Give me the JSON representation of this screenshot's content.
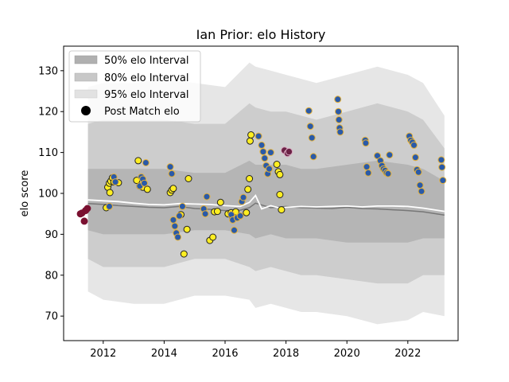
{
  "chart_data": {
    "type": "scatter",
    "title": "Ian Prior: elo History",
    "xlabel": "",
    "ylabel": "elo score",
    "xlim": [
      2010.7,
      2023.65
    ],
    "ylim": [
      64,
      136
    ],
    "xticks": [
      2012,
      2014,
      2016,
      2018,
      2020,
      2022
    ],
    "yticks": [
      70,
      80,
      90,
      100,
      110,
      120,
      130
    ],
    "grid": false,
    "legend_position": "top-left",
    "legend": [
      {
        "label": "50% elo Interval",
        "color": "#b0b0b0"
      },
      {
        "label": "80% elo Interval",
        "color": "#c8c8c8"
      },
      {
        "label": "95% elo Interval",
        "color": "#e2e2e2"
      },
      {
        "label": "Post Match elo",
        "color": "#000000"
      }
    ],
    "band_x": [
      2011.5,
      2012,
      2013,
      2014,
      2015,
      2016,
      2016.8,
      2017,
      2017.5,
      2018,
      2018.5,
      2019,
      2020,
      2021,
      2022,
      2022.5,
      2023.2
    ],
    "band95": {
      "upper": [
        126,
        127,
        127,
        128,
        127,
        126,
        132,
        131,
        130,
        129,
        128,
        127,
        129,
        131,
        129,
        127,
        119
      ],
      "lower": [
        76,
        74,
        73,
        73,
        75,
        75,
        74,
        72,
        73,
        72,
        71,
        71,
        70,
        68,
        69,
        71,
        70
      ]
    },
    "band80": {
      "upper": [
        117,
        118,
        118,
        118,
        117,
        117,
        122,
        121,
        120,
        120,
        119,
        118,
        120,
        122,
        120,
        118,
        111
      ],
      "lower": [
        84,
        82,
        82,
        82,
        84,
        84,
        82,
        81,
        82,
        81,
        80,
        80,
        79,
        78,
        78,
        80,
        80
      ]
    },
    "band50": {
      "upper": [
        106,
        106,
        106,
        106,
        105,
        105,
        108,
        107,
        107,
        107,
        106,
        106,
        107,
        108,
        107,
        106,
        103
      ],
      "lower": [
        91,
        90,
        90,
        90,
        91,
        91,
        90,
        89,
        90,
        89,
        89,
        89,
        88,
        88,
        88,
        89,
        89
      ]
    },
    "median_line": {
      "x": [
        2011.5,
        2012,
        2012.5,
        2013,
        2013.5,
        2014,
        2014.5,
        2015,
        2015.5,
        2016,
        2016.5,
        2016.8,
        2017,
        2017.5,
        2018,
        2018.5,
        2019,
        2019.5,
        2020,
        2020.5,
        2021,
        2021.5,
        2022,
        2022.5,
        2023.2
      ],
      "y": [
        97.5,
        97.3,
        97.0,
        96.8,
        96.6,
        96.5,
        96.8,
        96.3,
        96.1,
        95.8,
        95.9,
        96.5,
        97.6,
        96.5,
        96.8,
        96.5,
        96.4,
        96.3,
        96.6,
        96.3,
        96.2,
        96.0,
        95.8,
        95.5,
        94.7
      ]
    },
    "mean_line": {
      "x": [
        2011.5,
        2012,
        2012.5,
        2013,
        2013.5,
        2014,
        2014.5,
        2015,
        2015.5,
        2016,
        2016.5,
        2016.8,
        2017,
        2017.2,
        2017.5,
        2017.8,
        2018,
        2018.5,
        2019,
        2019.5,
        2020,
        2020.5,
        2021,
        2021.5,
        2022,
        2022.5,
        2023.2
      ],
      "y": [
        98.4,
        98.2,
        98.0,
        97.6,
        97.3,
        97.2,
        97.5,
        97.4,
        97.3,
        97.0,
        96.8,
        97.8,
        99.5,
        96.2,
        97.0,
        96.4,
        96.6,
        96.8,
        96.7,
        96.8,
        96.9,
        96.7,
        96.9,
        96.9,
        96.8,
        96.4,
        95.6
      ]
    },
    "series": [
      {
        "name": "Post Match elo",
        "style": "early",
        "x": [
          2011.25,
          2011.3,
          2011.38,
          2011.42,
          2011.48
        ],
        "y": [
          95,
          95.2,
          93.2,
          95.8,
          96.3
        ]
      },
      {
        "style": "played",
        "x": [
          2012.1,
          2012.15,
          2012.2,
          2012.22,
          2012.25,
          2012.3,
          2012.35,
          2012.5,
          2013.1,
          2013.15,
          2013.2,
          2013.3,
          2013.45,
          2014.2,
          2014.25,
          2014.3,
          2014.55,
          2014.65,
          2014.75,
          2014.8,
          2015.5,
          2015.6,
          2015.65,
          2015.75,
          2015.85,
          2016.1,
          2016.2,
          2016.25,
          2016.35,
          2016.7,
          2016.75,
          2016.8,
          2016.82,
          2016.85,
          2017.7,
          2017.75,
          2017.8,
          2017.8,
          2017.85
        ],
        "y": [
          96.5,
          101.5,
          102.5,
          100.2,
          103,
          103.8,
          102.8,
          102.6,
          103.2,
          108,
          101.8,
          101.5,
          101,
          100.2,
          100.8,
          101.2,
          94.8,
          85.2,
          91.2,
          103.6,
          88.5,
          89.3,
          95.5,
          95.6,
          97.8,
          95,
          95.3,
          94.2,
          95.5,
          95.3,
          101,
          103.6,
          112.8,
          114.3,
          107.1,
          105.3,
          99.7,
          104.6,
          96
        ]
      },
      {
        "style": "blue",
        "x": [
          2012.2,
          2012.35,
          2012.4,
          2013.2,
          2013.25,
          2013.3,
          2013.35,
          2013.4,
          2014.2,
          2014.25,
          2014.3,
          2014.35,
          2014.4,
          2014.45,
          2014.5,
          2014.6,
          2015.3,
          2015.35,
          2015.4,
          2016.2,
          2016.25,
          2016.3,
          2016.4,
          2016.5,
          2016.55,
          2016.6,
          2017.1,
          2017.2,
          2017.25,
          2017.3,
          2017.35,
          2017.4,
          2017.45,
          2017.5,
          2018.75,
          2018.8,
          2018.85,
          2018.9,
          2019.7,
          2019.72,
          2019.74,
          2019.76,
          2019.78,
          2020.6,
          2020.62,
          2020.65,
          2020.7,
          2021.0,
          2021.1,
          2021.15,
          2021.2,
          2021.25,
          2021.3,
          2021.35,
          2021.4,
          2022.05,
          2022.1,
          2022.15,
          2022.2,
          2022.25,
          2022.3,
          2022.35,
          2022.4,
          2022.45,
          2023.1,
          2023.12,
          2023.15
        ],
        "y": [
          96.8,
          104,
          102.8,
          101.8,
          104,
          103.5,
          102.5,
          107.5,
          106.5,
          104.8,
          93.5,
          92,
          90.3,
          89.3,
          94.5,
          96.8,
          96.2,
          95,
          99.2,
          94.8,
          93.5,
          91,
          94,
          94.5,
          98,
          99,
          114,
          111.8,
          110.2,
          108.6,
          106.8,
          104.8,
          106,
          110,
          120.2,
          116.4,
          113.6,
          109,
          123,
          120,
          118,
          116,
          115,
          113,
          112.3,
          106.5,
          105,
          109.2,
          108,
          106.8,
          106,
          105.6,
          105,
          104.8,
          109.4,
          114,
          113,
          112.5,
          111.8,
          108.8,
          105.8,
          105.2,
          102,
          100.5,
          108.2,
          106.4,
          103.2
        ]
      },
      {
        "style": "late",
        "x": [
          2017.95,
          2018.05,
          2018.1
        ],
        "y": [
          110.5,
          109.8,
          110.2
        ]
      }
    ]
  }
}
